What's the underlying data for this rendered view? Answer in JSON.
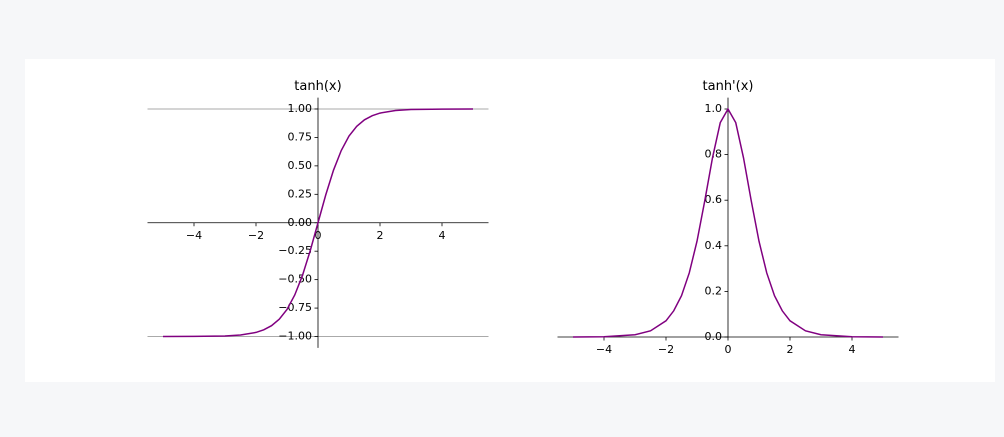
{
  "chart_data": [
    {
      "type": "line",
      "title": "tanh(x)",
      "x": [
        -5,
        -4,
        -3,
        -2.5,
        -2,
        -1.75,
        -1.5,
        -1.25,
        -1,
        -0.75,
        -0.5,
        -0.25,
        0,
        0.25,
        0.5,
        0.75,
        1,
        1.25,
        1.5,
        1.75,
        2,
        2.5,
        3,
        4,
        5
      ],
      "series": [
        {
          "color": "#800080",
          "values": [
            -1.0,
            -0.999,
            -0.995,
            -0.987,
            -0.964,
            -0.941,
            -0.905,
            -0.848,
            -0.762,
            -0.635,
            -0.462,
            -0.245,
            0,
            0.245,
            0.462,
            0.635,
            0.762,
            0.848,
            0.905,
            0.941,
            0.964,
            0.987,
            0.995,
            0.999,
            1.0
          ]
        }
      ],
      "xlim": [
        -5.5,
        5.5
      ],
      "ylim": [
        -1.1,
        1.1
      ],
      "xticks": [
        {
          "value": -4,
          "label": "−4"
        },
        {
          "value": -2,
          "label": "−2"
        },
        0,
        2,
        4
      ],
      "yticks": [
        {
          "value": -1,
          "label": "−1.00"
        },
        {
          "value": -0.75,
          "label": "−0.75"
        },
        {
          "value": -0.5,
          "label": "−0.50"
        },
        {
          "value": -0.25,
          "label": "−0.25"
        },
        {
          "value": 0,
          "label": "0.00"
        },
        {
          "value": 0.25,
          "label": "0.25"
        },
        {
          "value": 0.5,
          "label": "0.50"
        },
        {
          "value": 0.75,
          "label": "0.75"
        },
        {
          "value": 1,
          "label": "1.00"
        }
      ],
      "hlines": [
        -1,
        1
      ]
    },
    {
      "type": "line",
      "title": "tanh'(x)",
      "x": [
        -5,
        -4,
        -3,
        -2.5,
        -2,
        -1.75,
        -1.5,
        -1.25,
        -1,
        -0.75,
        -0.5,
        -0.25,
        0,
        0.25,
        0.5,
        0.75,
        1,
        1.25,
        1.5,
        1.75,
        2,
        2.5,
        3,
        4,
        5
      ],
      "series": [
        {
          "color": "#800080",
          "values": [
            0.0,
            0.001,
            0.01,
            0.027,
            0.071,
            0.115,
            0.181,
            0.281,
            0.42,
            0.597,
            0.786,
            0.94,
            1,
            0.94,
            0.786,
            0.597,
            0.42,
            0.281,
            0.181,
            0.115,
            0.071,
            0.027,
            0.01,
            0.001,
            0.0
          ]
        }
      ],
      "xlim": [
        -5.5,
        5.5
      ],
      "ylim": [
        0,
        1.05
      ],
      "xticks": [
        {
          "value": -4,
          "label": "−4"
        },
        {
          "value": -2,
          "label": "−2"
        },
        0,
        2,
        4
      ],
      "yticks": [
        {
          "value": 0,
          "label": "0.0"
        },
        {
          "value": 0.2,
          "label": "0.2"
        },
        {
          "value": 0.4,
          "label": "0.4"
        },
        {
          "value": 0.6,
          "label": "0.6"
        },
        {
          "value": 0.8,
          "label": "0.8"
        },
        {
          "value": 1,
          "label": "1.0"
        }
      ]
    }
  ]
}
